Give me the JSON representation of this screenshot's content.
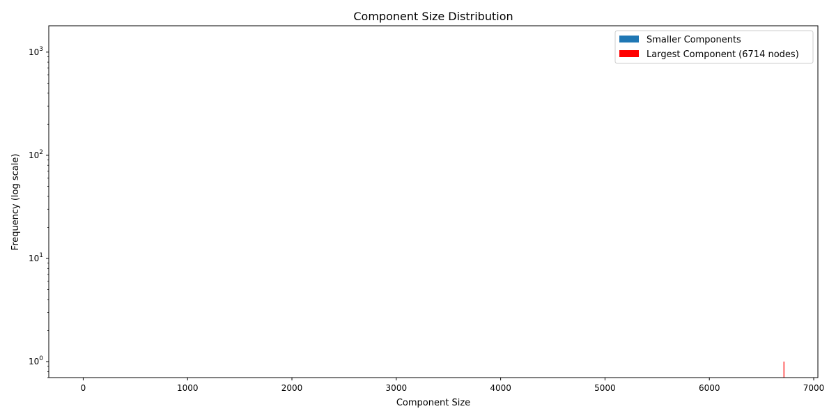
{
  "chart_data": {
    "type": "bar",
    "title": "Component Size Distribution",
    "xlabel": "Component Size",
    "ylabel": "Frequency (log scale)",
    "xlim": [
      -330,
      7040
    ],
    "ylim": [
      0.7,
      1800
    ],
    "yscale": "log",
    "x_ticks": [
      {
        "value": 0,
        "label": "0"
      },
      {
        "value": 1000,
        "label": "1000"
      },
      {
        "value": 2000,
        "label": "2000"
      },
      {
        "value": 3000,
        "label": "3000"
      },
      {
        "value": 4000,
        "label": "4000"
      },
      {
        "value": 5000,
        "label": "5000"
      },
      {
        "value": 6000,
        "label": "6000"
      },
      {
        "value": 7000,
        "label": "7000"
      }
    ],
    "y_ticks": [
      {
        "value": 1,
        "base": "10",
        "exp": "0"
      },
      {
        "value": 10,
        "base": "10",
        "exp": "1"
      },
      {
        "value": 100,
        "base": "10",
        "exp": "2"
      },
      {
        "value": 1000,
        "base": "10",
        "exp": "3"
      }
    ],
    "series": [
      {
        "name": "Smaller Components",
        "color": "#1f77b4",
        "points": []
      },
      {
        "name": "Largest Component (6714 nodes)",
        "color": "#ff0000",
        "points": [
          {
            "x": 6714,
            "y": 1
          }
        ]
      }
    ],
    "grid": false,
    "legend_position": "top-right"
  }
}
